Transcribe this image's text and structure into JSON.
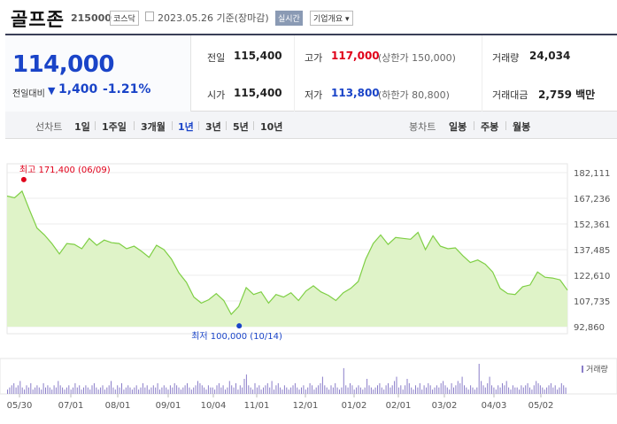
{
  "header": {
    "title": "골프존",
    "code": "215000",
    "market": "코스닥",
    "date": "2023.05.26  기준(장마감)",
    "realtime_label": "실시간",
    "company_info_label": "기업개요"
  },
  "summary": {
    "price": "114,000",
    "compare_label": "전일대비",
    "change": "1,400",
    "change_pct": "-1.21%",
    "prev_close_label": "전일",
    "prev_close": "115,400",
    "open_label": "시가",
    "open": "115,400",
    "high_label": "고가",
    "high": "117,000",
    "upper_limit": "(상한가 150,000)",
    "low_label": "저가",
    "low": "113,800",
    "lower_limit": "(하한가 80,800)",
    "volume_label": "거래량",
    "volume": "24,034",
    "amount_label": "거래대금",
    "amount": "2,759 백만"
  },
  "periods": {
    "line_chart_label": "선차트",
    "line_options": [
      "1일",
      "1주일",
      "3개월",
      "1년",
      "3년",
      "5년",
      "10년"
    ],
    "selected": "1년",
    "candle_chart_label": "봉차트",
    "candle_options": [
      "일봉",
      "주봉",
      "월봉"
    ]
  },
  "colors": {
    "accent": "#1a44c8",
    "up": "#e0001a",
    "line": "#7fcf45",
    "area": "#dff3c8"
  },
  "chart_data": {
    "type": "area",
    "y_ticks": [
      "182,111",
      "167,236",
      "152,361",
      "137,485",
      "122,610",
      "107,735",
      "92,860"
    ],
    "ylim": [
      92860,
      182111
    ],
    "x_ticks": [
      "05/30",
      "07/01",
      "08/01",
      "09/01",
      "10/04",
      "11/01",
      "12/01",
      "01/02",
      "02/01",
      "03/02",
      "04/03",
      "05/02"
    ],
    "max_annotation": "최고 171,400 (06/09)",
    "min_annotation": "최저 100,000 (10/14)",
    "volume_label": "거래량",
    "price_points": [
      [
        "05/30",
        168500
      ],
      [
        "06/03",
        167500
      ],
      [
        "06/09",
        171400
      ],
      [
        "06/13",
        160500
      ],
      [
        "06/17",
        150000
      ],
      [
        "06/22",
        146000
      ],
      [
        "06/27",
        141000
      ],
      [
        "07/01",
        135000
      ],
      [
        "07/05",
        141000
      ],
      [
        "07/08",
        140500
      ],
      [
        "07/12",
        138000
      ],
      [
        "07/18",
        144000
      ],
      [
        "07/22",
        140000
      ],
      [
        "07/27",
        143000
      ],
      [
        "08/01",
        141500
      ],
      [
        "08/05",
        141000
      ],
      [
        "08/10",
        138000
      ],
      [
        "08/15",
        139500
      ],
      [
        "08/19",
        136500
      ],
      [
        "08/24",
        133000
      ],
      [
        "08/29",
        140000
      ],
      [
        "09/01",
        137500
      ],
      [
        "09/06",
        132000
      ],
      [
        "09/09",
        124000
      ],
      [
        "09/15",
        118500
      ],
      [
        "09/20",
        110000
      ],
      [
        "09/26",
        106500
      ],
      [
        "09/30",
        108500
      ],
      [
        "10/04",
        112000
      ],
      [
        "10/08",
        108000
      ],
      [
        "10/14",
        100000
      ],
      [
        "10/18",
        104500
      ],
      [
        "10/24",
        115500
      ],
      [
        "10/28",
        111500
      ],
      [
        "11/01",
        113000
      ],
      [
        "11/05",
        106500
      ],
      [
        "11/10",
        111500
      ],
      [
        "11/16",
        110000
      ],
      [
        "11/22",
        112500
      ],
      [
        "11/28",
        108000
      ],
      [
        "12/01",
        113500
      ],
      [
        "12/07",
        116500
      ],
      [
        "12/13",
        113000
      ],
      [
        "12/19",
        111000
      ],
      [
        "12/23",
        108000
      ],
      [
        "12/28",
        112500
      ],
      [
        "01/02",
        115000
      ],
      [
        "01/06",
        119000
      ],
      [
        "01/11",
        132000
      ],
      [
        "01/16",
        141000
      ],
      [
        "01/20",
        146000
      ],
      [
        "01/26",
        140500
      ],
      [
        "02/01",
        144500
      ],
      [
        "02/06",
        144000
      ],
      [
        "02/11",
        143500
      ],
      [
        "02/16",
        147500
      ],
      [
        "02/21",
        137500
      ],
      [
        "02/26",
        145500
      ],
      [
        "03/02",
        139500
      ],
      [
        "03/07",
        138000
      ],
      [
        "03/12",
        138500
      ],
      [
        "03/17",
        134000
      ],
      [
        "03/22",
        130000
      ],
      [
        "03/28",
        131500
      ],
      [
        "04/03",
        129000
      ],
      [
        "04/08",
        124500
      ],
      [
        "04/13",
        115000
      ],
      [
        "04/18",
        112000
      ],
      [
        "04/23",
        111500
      ],
      [
        "04/28",
        116000
      ],
      [
        "05/02",
        117000
      ],
      [
        "05/07",
        124500
      ],
      [
        "05/12",
        121500
      ],
      [
        "05/17",
        121000
      ],
      [
        "05/22",
        120000
      ],
      [
        "05/26",
        114000
      ]
    ],
    "volume_levels": [
      2,
      3,
      4,
      5,
      3,
      4,
      6,
      3,
      2,
      4,
      3,
      5,
      2,
      3,
      4,
      3,
      2,
      5,
      3,
      4,
      3,
      2,
      4,
      3,
      6,
      4,
      3,
      2,
      3,
      4,
      2,
      3,
      5,
      3,
      4,
      2,
      3,
      4,
      3,
      2,
      4,
      5,
      3,
      2,
      3,
      4,
      2,
      3,
      4,
      6,
      3,
      2,
      4,
      3,
      5,
      2,
      3,
      4,
      3,
      2,
      3,
      4,
      2,
      3,
      5,
      3,
      4,
      2,
      3,
      4,
      3,
      5,
      2,
      3,
      4,
      3,
      2,
      4,
      3,
      5,
      4,
      3,
      2,
      3,
      4,
      5,
      3,
      2,
      3,
      4,
      6,
      5,
      4,
      3,
      2,
      4,
      3,
      3,
      2,
      4,
      5,
      3,
      4,
      2,
      3,
      6,
      4,
      3,
      5,
      2,
      4,
      3,
      7,
      9,
      4,
      3,
      2,
      5,
      3,
      4,
      2,
      3,
      4,
      5,
      3,
      6,
      2,
      4,
      5,
      3,
      2,
      4,
      3,
      2,
      3,
      4,
      5,
      3,
      2,
      3,
      4,
      2,
      3,
      5,
      4,
      2,
      3,
      4,
      5,
      8,
      4,
      3,
      2,
      4,
      3,
      5,
      3,
      2,
      3,
      12,
      4,
      3,
      5,
      4,
      2,
      3,
      4,
      3,
      2,
      3,
      7,
      4,
      3,
      2,
      3,
      4,
      5,
      3,
      2,
      4,
      5,
      3,
      4,
      6,
      8,
      3,
      4,
      2,
      4,
      7,
      5,
      3,
      2,
      4,
      3,
      5,
      2,
      4,
      3,
      5,
      4,
      2,
      3,
      4,
      3,
      5,
      6,
      4,
      3,
      2,
      5,
      3,
      4,
      6,
      5,
      8,
      4,
      3,
      2,
      4,
      3,
      2,
      3,
      14,
      6,
      4,
      3,
      5,
      8,
      4,
      3,
      2,
      4,
      3,
      5,
      4,
      6,
      3,
      2,
      4,
      3,
      3,
      2,
      4,
      3,
      4,
      5,
      3,
      2,
      4,
      6,
      5,
      4,
      3,
      2,
      3,
      4,
      5,
      3,
      4,
      2,
      3,
      5,
      4,
      3
    ]
  }
}
